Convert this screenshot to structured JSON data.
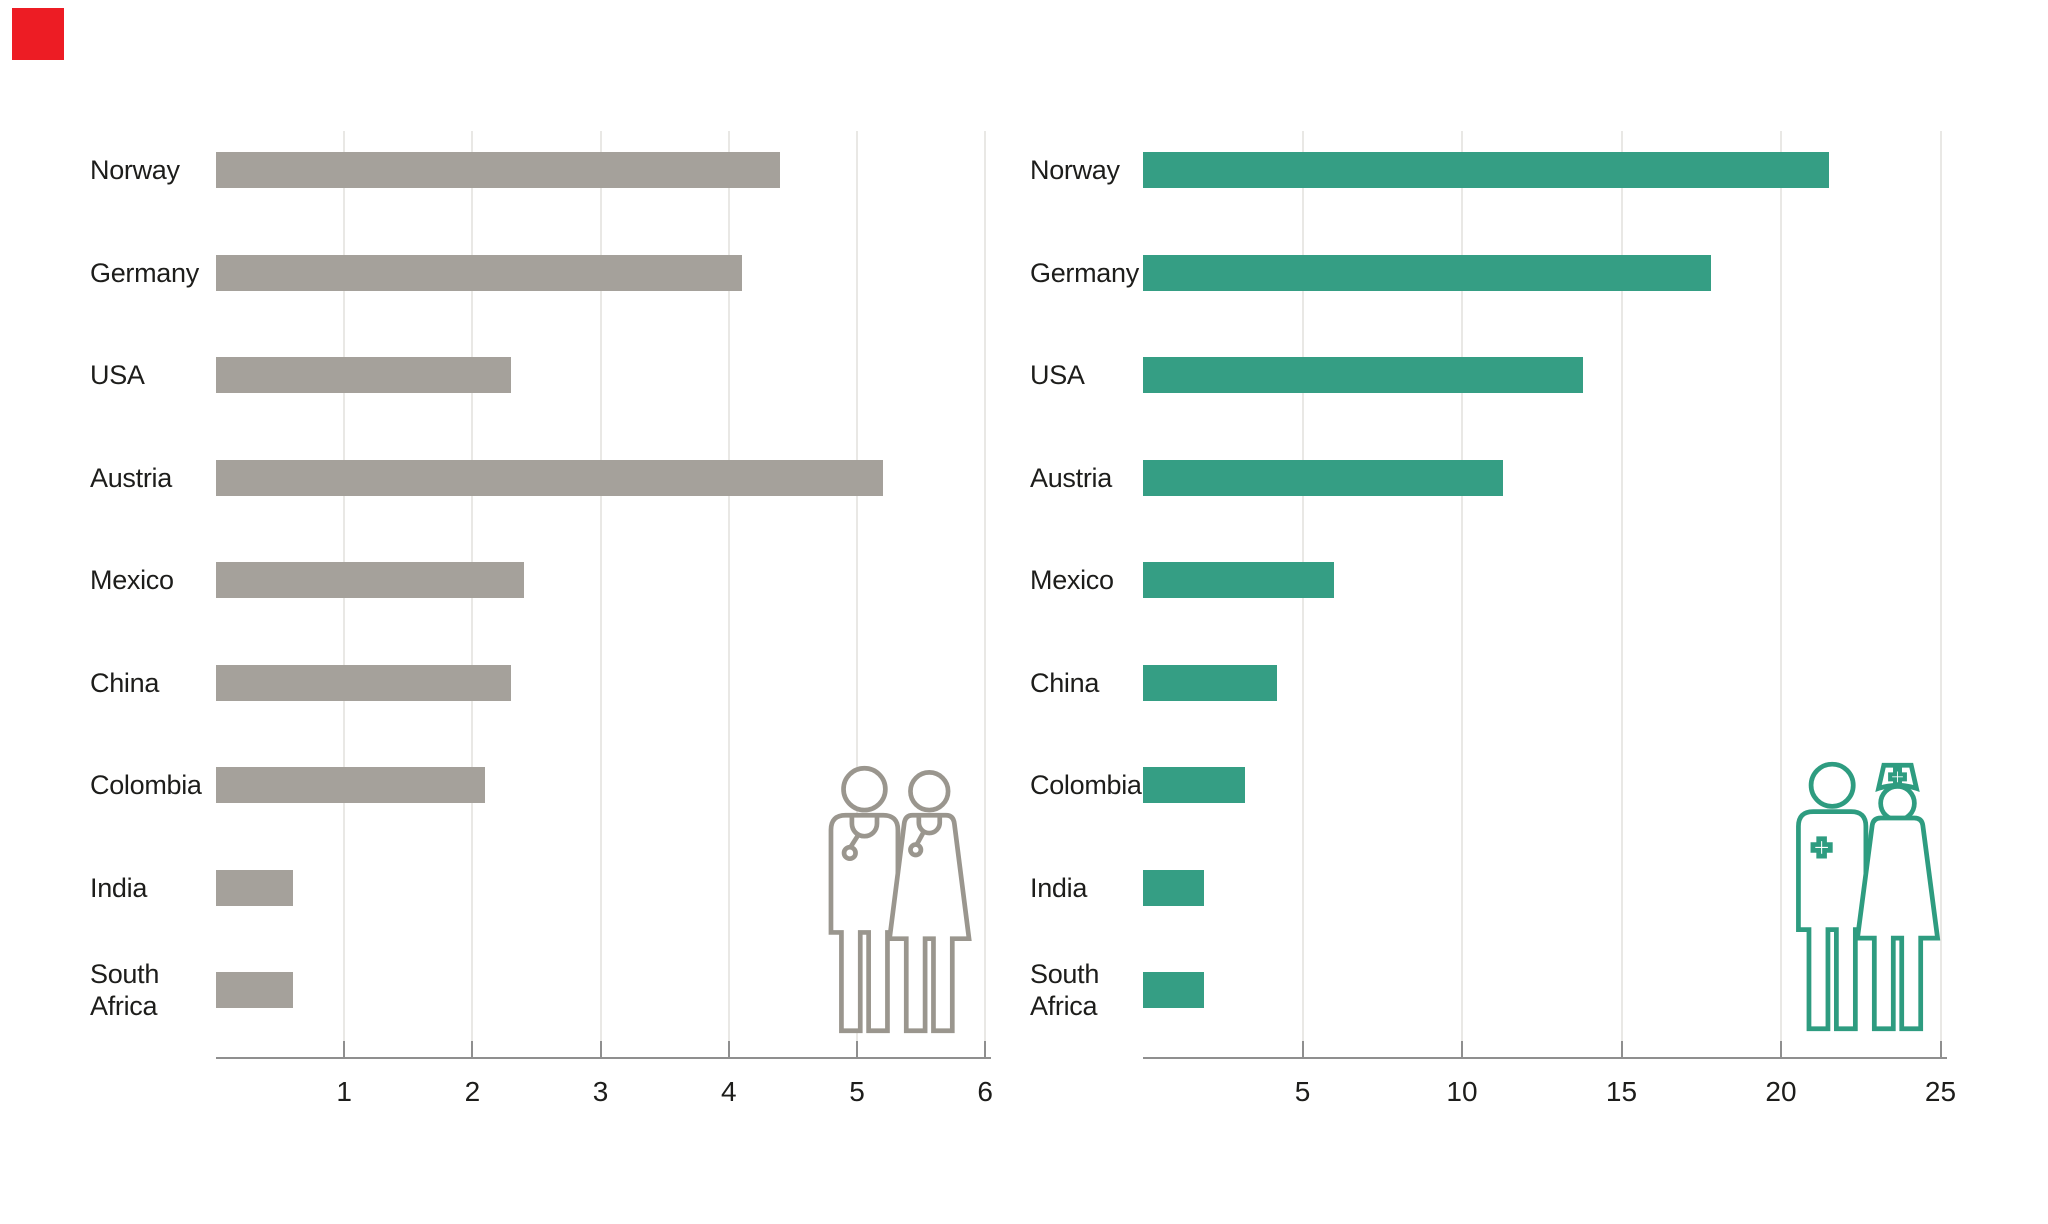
{
  "page": {
    "background": "#ffffff"
  },
  "logo": {
    "name": "red-square-logo",
    "color": "#ed1c24"
  },
  "axis": {
    "line_color": "#8f8f8f",
    "grid_color": "#e9e8e5",
    "text_color": "#1d1d1b"
  },
  "chart_data": [
    {
      "type": "bar",
      "orientation": "horizontal",
      "title": "",
      "categories": [
        "Norway",
        "Germany",
        "USA",
        "Austria",
        "Mexico",
        "China",
        "Colombia",
        "India",
        "South Africa"
      ],
      "values": [
        4.4,
        4.1,
        2.3,
        5.2,
        2.4,
        2.3,
        2.1,
        0.6,
        0.6
      ],
      "xlim": [
        0,
        6
      ],
      "xticks": [
        1,
        2,
        3,
        4,
        5,
        6
      ],
      "grid": true,
      "legend": "none",
      "bar_color": "#a5a19b",
      "icon": "doctors-icon",
      "icon_color": "#9a968e"
    },
    {
      "type": "bar",
      "orientation": "horizontal",
      "title": "",
      "categories": [
        "Norway",
        "Germany",
        "USA",
        "Austria",
        "Mexico",
        "China",
        "Colombia",
        "India",
        "South Africa"
      ],
      "values": [
        21.5,
        17.8,
        13.8,
        11.3,
        6.0,
        4.2,
        3.2,
        1.9,
        1.9
      ],
      "xlim": [
        0,
        25
      ],
      "xticks": [
        5,
        10,
        15,
        20,
        25
      ],
      "grid": true,
      "legend": "none",
      "bar_color": "#359e84",
      "icon": "nurses-icon",
      "icon_color": "#2e9c80"
    }
  ]
}
